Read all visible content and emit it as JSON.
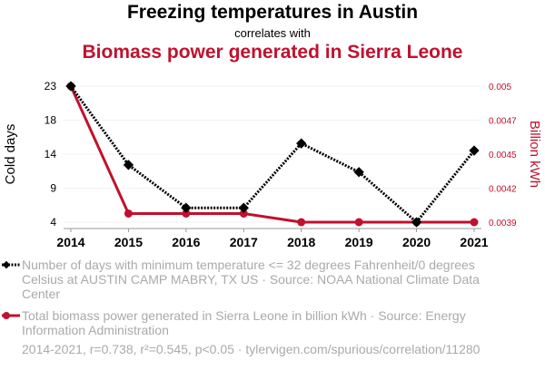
{
  "title": "Freezing temperatures in Austin",
  "subtitle": "correlates with",
  "title2": "Biomass power generated in Sierra Leone",
  "legend": [
    "Number of days with minimum temperature <= 32 degrees Fahrenheit/0 degrees Celsius at AUSTIN CAMP MABRY, TX US · Source: NOAA National Climate Data Center",
    "Total biomass power generated in Sierra Leone in billion kWh · Source: Energy Information Administration"
  ],
  "footer": "2014-2021, r=0.738, r²=0.545, p<0.05 · tylervigen.com/spurious/correlation/11280",
  "chart_data": {
    "type": "line",
    "x": [
      2014,
      2015,
      2016,
      2017,
      2018,
      2019,
      2020,
      2021
    ],
    "ylabel": "Cold days",
    "y2label": "Billion kWh",
    "ylim": [
      4,
      23
    ],
    "y2lim": [
      0.0039,
      0.005
    ],
    "yticks": [
      "23",
      "18",
      "14",
      "9",
      "4"
    ],
    "y2ticks": [
      "0.005",
      "0.0047",
      "0.0045",
      "0.0042",
      "0.0039"
    ],
    "series": [
      {
        "name": "Cold days",
        "axis": "left",
        "color": "#000000",
        "values": [
          23,
          12,
          6,
          6,
          15,
          11,
          4,
          14
        ]
      },
      {
        "name": "Billion kWh",
        "axis": "right",
        "color": "#c0112e",
        "values": [
          0.005,
          0.00397,
          0.00397,
          0.00397,
          0.0039,
          0.0039,
          0.0039,
          0.0039
        ]
      }
    ]
  }
}
